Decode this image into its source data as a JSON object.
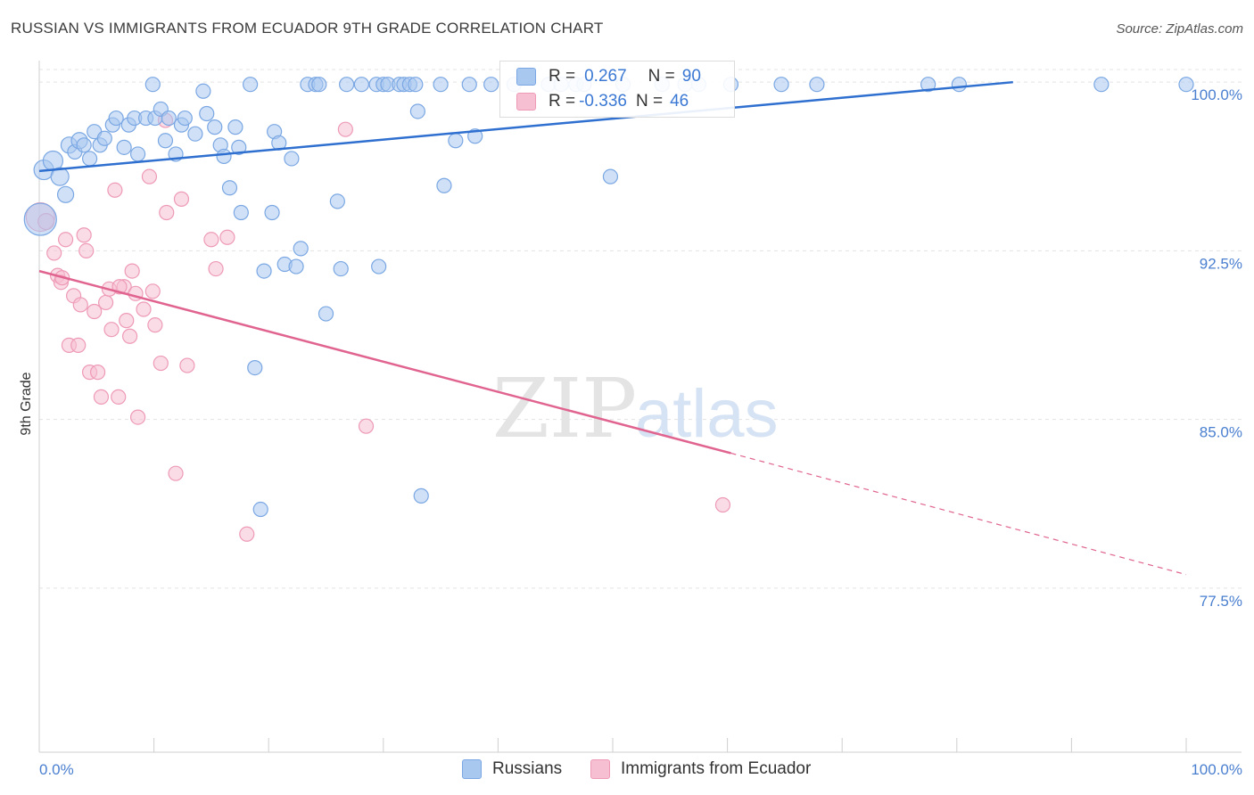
{
  "header": {
    "title": "RUSSIAN VS IMMIGRANTS FROM ECUADOR 9TH GRADE CORRELATION CHART",
    "source": "Source: ZipAtlas.com"
  },
  "watermark": {
    "zip": "ZIP",
    "atlas": "atlas"
  },
  "legend_top": {
    "rows": [
      {
        "r_label": "R = ",
        "r_value": "0.267",
        "n_label": "N = ",
        "n_value": "90"
      },
      {
        "r_label": "R = ",
        "r_value": "-0.336",
        "n_label": "N = ",
        "n_value": "46"
      }
    ]
  },
  "legend_bottom": {
    "russians": "Russians",
    "ecuador": "Immigrants from Ecuador"
  },
  "colors": {
    "blue_fill": "#a9c8f0",
    "blue_stroke": "#7aa7e3",
    "blue_line": "#2e6fcf",
    "pink_fill": "#f6c0d2",
    "pink_stroke": "#ee9ab6",
    "pink_line": "#e0648f",
    "tick_text": "#4a7fd0",
    "grid": "#e3e3e3"
  },
  "chart_data": {
    "type": "scatter",
    "xlabel": "",
    "ylabel": "9th Grade",
    "xlim": [
      0,
      100
    ],
    "ylim": [
      70.2,
      100.8
    ],
    "x_tick_labels": [
      "0.0%",
      "100.0%"
    ],
    "y_ticks": [
      {
        "value": 100.0,
        "label": "100.0%"
      },
      {
        "value": 92.5,
        "label": "92.5%"
      },
      {
        "value": 85.0,
        "label": "85.0%"
      },
      {
        "value": 77.5,
        "label": "77.5%"
      }
    ],
    "x_minor_ticks": [
      0,
      10,
      20,
      30,
      40,
      50,
      60,
      70,
      80,
      90,
      100
    ],
    "series": [
      {
        "name": "Russians",
        "color": "blue",
        "R": 0.267,
        "N": 90,
        "trend": {
          "x": [
            0,
            84.9
          ],
          "y": [
            96.05,
            100.0
          ],
          "dashed_to": null
        },
        "points": [
          [
            0.1,
            93.9,
            18
          ],
          [
            0.4,
            96.1,
            11
          ],
          [
            1.2,
            96.5,
            11
          ],
          [
            1.8,
            95.8,
            10
          ],
          [
            2.3,
            95.0,
            9
          ],
          [
            2.6,
            97.2,
            9
          ],
          [
            3.1,
            96.9,
            8
          ],
          [
            3.5,
            97.4,
            9
          ],
          [
            3.9,
            97.2,
            8
          ],
          [
            4.4,
            96.6,
            8
          ],
          [
            4.8,
            97.8,
            8
          ],
          [
            5.3,
            97.2,
            8
          ],
          [
            5.7,
            97.5,
            8
          ],
          [
            6.4,
            98.1,
            8
          ],
          [
            6.7,
            98.4,
            8
          ],
          [
            7.4,
            97.1,
            8
          ],
          [
            7.8,
            98.1,
            8
          ],
          [
            8.3,
            98.4,
            8
          ],
          [
            8.6,
            96.8,
            8
          ],
          [
            9.3,
            98.4,
            8
          ],
          [
            9.9,
            99.9,
            8
          ],
          [
            10.1,
            98.4,
            8
          ],
          [
            10.6,
            98.8,
            8
          ],
          [
            11.0,
            97.4,
            8
          ],
          [
            11.3,
            98.4,
            8
          ],
          [
            11.9,
            96.8,
            8
          ],
          [
            12.4,
            98.1,
            8
          ],
          [
            12.7,
            98.4,
            8
          ],
          [
            13.6,
            97.7,
            8
          ],
          [
            14.3,
            99.6,
            8
          ],
          [
            14.6,
            98.6,
            8
          ],
          [
            15.3,
            98.0,
            8
          ],
          [
            15.8,
            97.2,
            8
          ],
          [
            16.1,
            96.7,
            8
          ],
          [
            16.6,
            95.3,
            8
          ],
          [
            17.1,
            98.0,
            8
          ],
          [
            17.4,
            97.1,
            8
          ],
          [
            17.6,
            94.2,
            8
          ],
          [
            18.4,
            99.9,
            8
          ],
          [
            18.8,
            87.3,
            8
          ],
          [
            19.3,
            81.0,
            8
          ],
          [
            19.6,
            91.6,
            8
          ],
          [
            20.3,
            94.2,
            8
          ],
          [
            20.5,
            97.8,
            8
          ],
          [
            20.9,
            97.3,
            8
          ],
          [
            21.4,
            91.9,
            8
          ],
          [
            22.0,
            96.6,
            8
          ],
          [
            22.4,
            91.8,
            8
          ],
          [
            22.8,
            92.6,
            8
          ],
          [
            23.4,
            99.9,
            8
          ],
          [
            24.1,
            99.9,
            8
          ],
          [
            24.4,
            99.9,
            8
          ],
          [
            25.0,
            89.7,
            8
          ],
          [
            26.0,
            94.7,
            8
          ],
          [
            26.3,
            91.7,
            8
          ],
          [
            26.8,
            99.9,
            8
          ],
          [
            28.1,
            99.9,
            8
          ],
          [
            29.4,
            99.9,
            8
          ],
          [
            29.6,
            91.8,
            8
          ],
          [
            30.0,
            99.9,
            8
          ],
          [
            30.4,
            99.9,
            8
          ],
          [
            31.4,
            99.9,
            8
          ],
          [
            31.8,
            99.9,
            8
          ],
          [
            32.3,
            99.9,
            8
          ],
          [
            32.8,
            99.9,
            8
          ],
          [
            33.0,
            98.7,
            8
          ],
          [
            33.3,
            81.6,
            8
          ],
          [
            35.0,
            99.9,
            8
          ],
          [
            35.3,
            95.4,
            8
          ],
          [
            36.3,
            97.4,
            8
          ],
          [
            37.5,
            99.9,
            8
          ],
          [
            38.0,
            97.6,
            8
          ],
          [
            39.4,
            99.9,
            8
          ],
          [
            41.4,
            99.9,
            8
          ],
          [
            44.4,
            99.9,
            8
          ],
          [
            45.5,
            99.9,
            8
          ],
          [
            46.8,
            99.9,
            8
          ],
          [
            49.8,
            95.8,
            8
          ],
          [
            50.9,
            99.9,
            8
          ],
          [
            54.3,
            99.9,
            8
          ],
          [
            56.3,
            99.9,
            8
          ],
          [
            57.5,
            99.9,
            8
          ],
          [
            60.3,
            99.9,
            8
          ],
          [
            64.7,
            99.9,
            8
          ],
          [
            67.8,
            99.9,
            8
          ],
          [
            77.5,
            99.9,
            8
          ],
          [
            80.2,
            99.9,
            8
          ],
          [
            92.6,
            99.9,
            8
          ],
          [
            100.0,
            99.9,
            8
          ],
          [
            47.5,
            99.9,
            8
          ]
        ]
      },
      {
        "name": "Immigrants from Ecuador",
        "color": "pink",
        "R": -0.336,
        "N": 46,
        "trend": {
          "x": [
            0,
            60.3
          ],
          "y": [
            91.6,
            83.5
          ],
          "dashed_to": [
            100,
            78.1
          ]
        },
        "points": [
          [
            0.1,
            94.0,
            16
          ],
          [
            0.6,
            93.8,
            9
          ],
          [
            1.3,
            92.4,
            8
          ],
          [
            1.6,
            91.4,
            8
          ],
          [
            1.9,
            91.1,
            8
          ],
          [
            2.3,
            93.0,
            8
          ],
          [
            2.6,
            88.3,
            8
          ],
          [
            3.0,
            90.5,
            8
          ],
          [
            3.4,
            88.3,
            8
          ],
          [
            3.6,
            90.1,
            8
          ],
          [
            3.9,
            93.2,
            8
          ],
          [
            4.1,
            92.5,
            8
          ],
          [
            4.4,
            87.1,
            8
          ],
          [
            4.8,
            89.8,
            8
          ],
          [
            5.1,
            87.1,
            8
          ],
          [
            5.4,
            86.0,
            8
          ],
          [
            5.8,
            90.2,
            8
          ],
          [
            6.1,
            90.8,
            8
          ],
          [
            6.3,
            89.0,
            8
          ],
          [
            6.6,
            95.2,
            8
          ],
          [
            6.9,
            86.0,
            8
          ],
          [
            7.4,
            90.9,
            8
          ],
          [
            7.6,
            89.4,
            8
          ],
          [
            7.9,
            88.7,
            8
          ],
          [
            8.1,
            91.6,
            8
          ],
          [
            8.4,
            90.6,
            8
          ],
          [
            8.6,
            85.1,
            8
          ],
          [
            9.1,
            89.9,
            8
          ],
          [
            9.6,
            95.8,
            8
          ],
          [
            9.9,
            90.7,
            8
          ],
          [
            10.1,
            89.2,
            8
          ],
          [
            10.6,
            87.5,
            8
          ],
          [
            11.0,
            98.3,
            8
          ],
          [
            11.1,
            94.2,
            8
          ],
          [
            11.9,
            82.6,
            8
          ],
          [
            12.4,
            94.8,
            8
          ],
          [
            12.9,
            87.4,
            8
          ],
          [
            15.0,
            93.0,
            8
          ],
          [
            15.4,
            91.7,
            8
          ],
          [
            16.4,
            93.1,
            8
          ],
          [
            18.1,
            79.9,
            8
          ],
          [
            26.7,
            97.9,
            8
          ],
          [
            28.5,
            84.7,
            8
          ],
          [
            59.6,
            81.2,
            8
          ],
          [
            2.0,
            91.3,
            8
          ],
          [
            7.0,
            90.9,
            8
          ]
        ]
      }
    ]
  }
}
